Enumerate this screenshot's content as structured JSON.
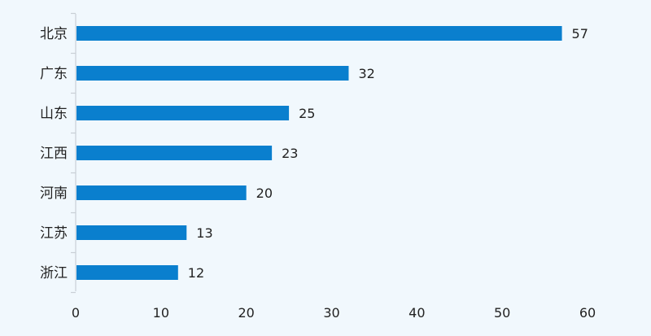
{
  "chart_data": {
    "type": "bar",
    "orientation": "horizontal",
    "categories": [
      "北京",
      "广东",
      "山东",
      "江西",
      "河南",
      "江苏",
      "浙江"
    ],
    "values": [
      57,
      32,
      25,
      23,
      20,
      13,
      12
    ],
    "title": "",
    "xlabel": "",
    "ylabel": "",
    "xlim": [
      0,
      60
    ],
    "xticks": [
      0,
      10,
      20,
      30,
      40,
      50,
      60
    ],
    "grid": false,
    "data_labels": true,
    "bar_color": "#0a7fce",
    "axis_color": "#c9cfd6",
    "background": "#f1f8fd"
  }
}
